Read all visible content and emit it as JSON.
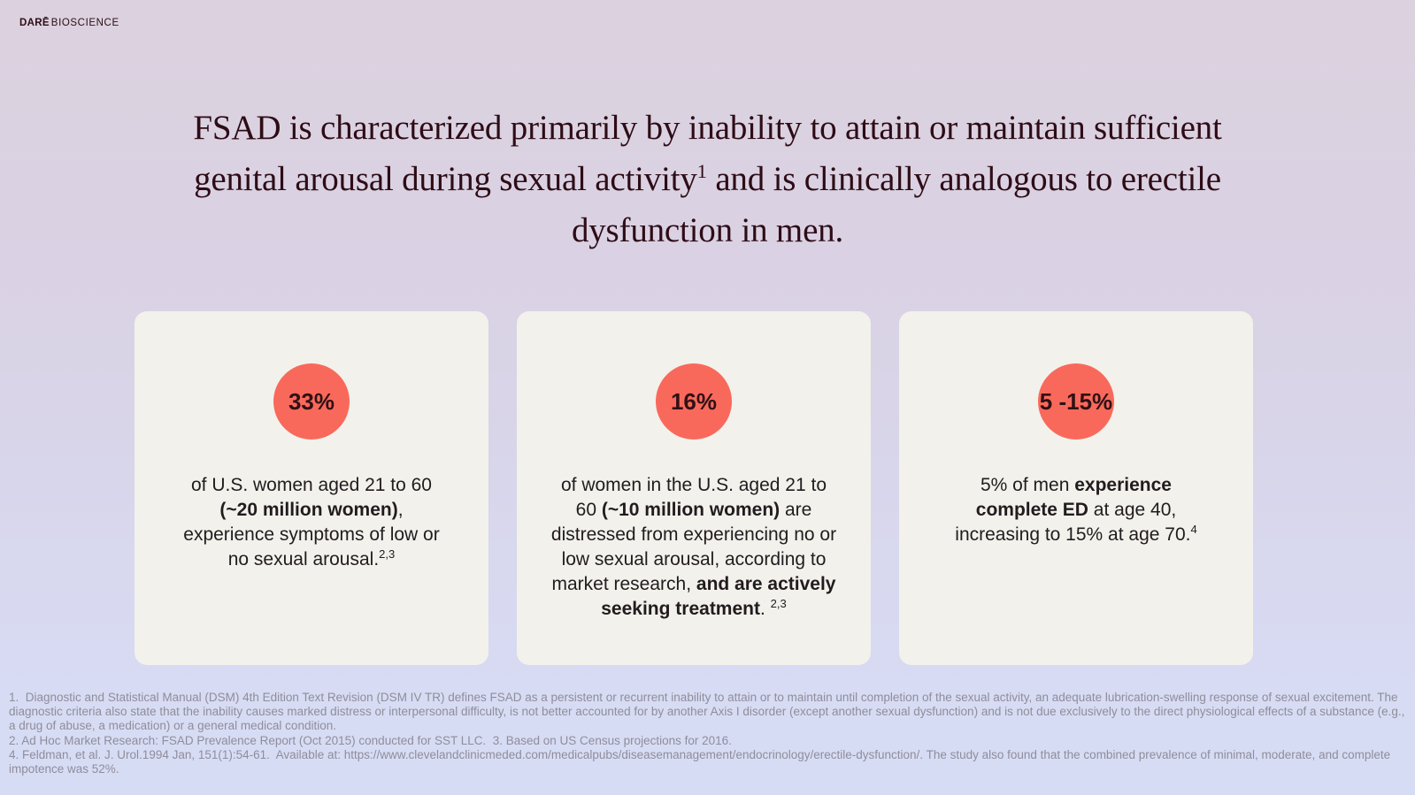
{
  "colors": {
    "bg_top": "#DCD1DE",
    "bg_mid": "#D9D3E6",
    "bg_bottom": "#D7DCF5",
    "accent": "#F9695B",
    "card_bg": "#F2F1EB",
    "title_ink": "#2E0C16",
    "body_ink": "#221B1F",
    "badge_ink": "#2F1115",
    "footnote_ink": "#8F8D9A"
  },
  "logo": {
    "primary": "DARĒ",
    "secondary": "BIOSCIENCE"
  },
  "title": {
    "segments": [
      {
        "t": "FSAD is characterized primarily by inability to attain or maintain sufficient"
      },
      {
        "br": true
      },
      {
        "t": "genital arousal during sexual activity"
      },
      {
        "t": "1",
        "sup": true
      },
      {
        "t": " and is clinically analogous to erectile"
      },
      {
        "br": true
      },
      {
        "t": "dysfunction in men."
      }
    ]
  },
  "cards": [
    {
      "badge": "33%",
      "body": [
        {
          "t": "of U.S. women aged 21 to 60"
        },
        {
          "br": true
        },
        {
          "t": "(~20 million women)",
          "b": true
        },
        {
          "t": ","
        },
        {
          "br": true
        },
        {
          "t": "experience symptoms of low or"
        },
        {
          "br": true
        },
        {
          "t": "no sexual arousal."
        },
        {
          "t": "2,3",
          "sup": true
        }
      ]
    },
    {
      "badge": "16%",
      "body": [
        {
          "t": "of women in the U.S. aged 21 to"
        },
        {
          "br": true
        },
        {
          "t": "60 "
        },
        {
          "t": "(~10 million women)",
          "b": true
        },
        {
          "t": " are"
        },
        {
          "br": true
        },
        {
          "t": "distressed from experiencing no or"
        },
        {
          "br": true
        },
        {
          "t": "low sexual arousal, according to"
        },
        {
          "br": true
        },
        {
          "t": "market research, "
        },
        {
          "t": "and are actively",
          "b": true
        },
        {
          "br": true
        },
        {
          "t": "seeking treatment",
          "b": true
        },
        {
          "t": ". "
        },
        {
          "t": "2,3",
          "sup": true
        }
      ]
    },
    {
      "badge": "5 -15%",
      "body": [
        {
          "t": "5% of men "
        },
        {
          "t": "experience",
          "b": true
        },
        {
          "br": true
        },
        {
          "t": "complete ED",
          "b": true
        },
        {
          "t": " at age 40,"
        },
        {
          "br": true
        },
        {
          "t": "increasing to 15% at age 70."
        },
        {
          "t": "4",
          "sup": true
        }
      ]
    }
  ],
  "footnotes": [
    "1.  Diagnostic and Statistical Manual (DSM) 4th Edition Text Revision (DSM IV TR) defines FSAD as a persistent or recurrent inability to attain or to maintain until completion of the sexual activity, an adequate lubrication-swelling response of sexual excitement. The diagnostic criteria also state that the inability causes marked distress or interpersonal difficulty, is not better accounted for by another Axis I disorder (except another sexual dysfunction) and is not due exclusively to the direct physiological effects of a substance (e.g., a drug of abuse, a medication) or a general medical condition.",
    "2. Ad Hoc Market Research: FSAD Prevalence Report (Oct 2015) conducted for SST LLC.  3. Based on US Census projections for 2016.",
    "4. Feldman, et al. J. Urol.1994 Jan, 151(1):54-61.  Available at: https://www.clevelandclinicmeded.com/medicalpubs/diseasemanagement/endocrinology/erectile-dysfunction/. The study also found that the combined prevalence of minimal, moderate, and complete impotence was 52%."
  ]
}
